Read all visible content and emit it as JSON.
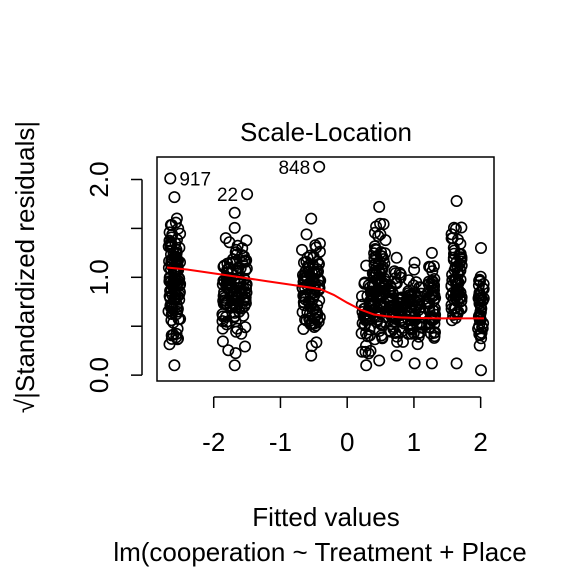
{
  "chart_data": {
    "type": "scatter",
    "title": "Scale-Location",
    "xlabel": "Fitted values",
    "sublabel": "lm(cooperation ~ Treatment + Place",
    "ylabel_radical": "√",
    "ylabel": "|Standardized residuals|",
    "xlim": [
      -2.85,
      2.2
    ],
    "ylim": [
      -0.06,
      2.23
    ],
    "x_ticks": [
      -2,
      -1,
      0,
      1,
      2
    ],
    "x_tick_labels": [
      "-2",
      "-1",
      "0",
      "1",
      "2"
    ],
    "y_ticks": [
      0.0,
      0.5,
      1.0,
      1.5,
      2.0
    ],
    "y_tick_labels": [
      "0.0",
      "",
      "1.0",
      "",
      "2.0"
    ],
    "grid": false,
    "legend": "none",
    "colors": {
      "points": "#000000",
      "smooth": "#ff0000",
      "axis": "#000000"
    },
    "labeled_points": [
      {
        "label": "917",
        "x": -2.65,
        "y": 2.01
      },
      {
        "label": "22",
        "x": -1.5,
        "y": 1.85
      },
      {
        "label": "848",
        "x": -0.42,
        "y": 2.13
      }
    ],
    "clusters": [
      {
        "x": [
          -2.68,
          -2.5
        ],
        "y": [
          0.1,
          1.82
        ],
        "n": 120
      },
      {
        "x": [
          -1.87,
          -1.5
        ],
        "y": [
          0.1,
          1.66
        ],
        "n": 120
      },
      {
        "x": [
          -0.68,
          -0.4
        ],
        "y": [
          0.2,
          1.6
        ],
        "n": 100
      },
      {
        "x": [
          0.2,
          0.37
        ],
        "y": [
          0.1,
          1.12
        ],
        "n": 45
      },
      {
        "x": [
          0.38,
          0.58
        ],
        "y": [
          0.15,
          1.72
        ],
        "n": 90
      },
      {
        "x": [
          0.62,
          0.86
        ],
        "y": [
          0.2,
          1.2
        ],
        "n": 70
      },
      {
        "x": [
          0.9,
          1.12
        ],
        "y": [
          0.12,
          1.15
        ],
        "n": 60
      },
      {
        "x": [
          1.22,
          1.32
        ],
        "y": [
          0.12,
          1.25
        ],
        "n": 45
      },
      {
        "x": [
          1.56,
          1.72
        ],
        "y": [
          0.12,
          1.78
        ],
        "n": 75
      },
      {
        "x": [
          1.96,
          2.05
        ],
        "y": [
          0.05,
          1.3
        ],
        "n": 40
      }
    ],
    "smooth_line": {
      "x": [
        -2.7,
        -2.4,
        -2.0,
        -1.6,
        -1.2,
        -0.8,
        -0.4,
        -0.2,
        0.0,
        0.2,
        0.4,
        0.6,
        0.8,
        1.0,
        1.4,
        1.8,
        2.05
      ],
      "y": [
        1.1,
        1.08,
        1.04,
        1.0,
        0.96,
        0.92,
        0.88,
        0.82,
        0.74,
        0.67,
        0.62,
        0.6,
        0.59,
        0.585,
        0.58,
        0.58,
        0.58
      ]
    }
  }
}
